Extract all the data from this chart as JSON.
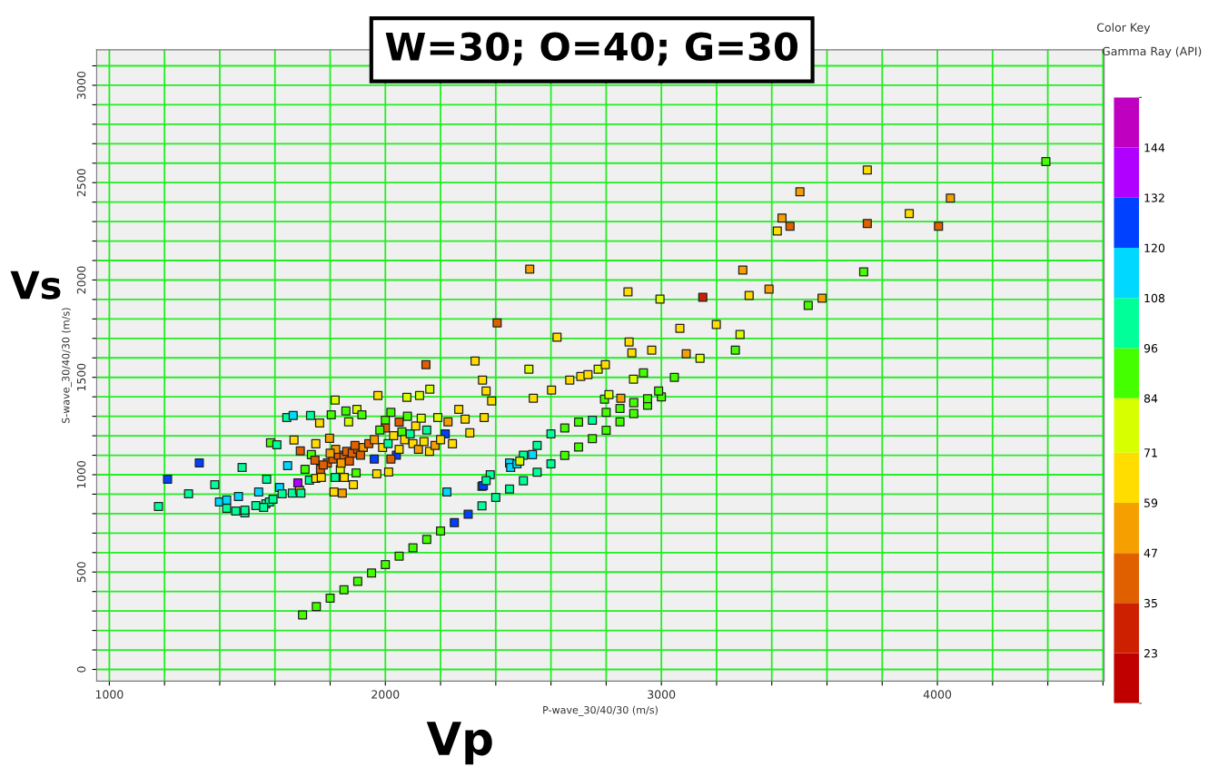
{
  "chart_data": {
    "type": "scatter",
    "title": "W=30; O=40; G=30",
    "xlabel": "P-wave_30/40/30 (m/s)",
    "ylabel": "S-wave_30/40/30 (m/s)",
    "clabel": "Gamma Ray (API)",
    "annotations": [
      "Vs",
      "Vp",
      "Color Key"
    ],
    "xlim": [
      954,
      4604
    ],
    "ylim": [
      -60,
      3182
    ],
    "xticks": [
      1000,
      {
        "value": 1200,
        "label": null
      },
      {
        "value": 1400,
        "label": null
      },
      {
        "value": 1600,
        "label": null
      },
      {
        "value": 1800,
        "label": null
      },
      2000,
      {
        "value": 2200,
        "label": null
      },
      {
        "value": 2400,
        "label": null
      },
      {
        "value": 2600,
        "label": null
      },
      {
        "value": 2800,
        "label": null
      },
      3000,
      {
        "value": 3200,
        "label": null
      },
      {
        "value": 3400,
        "label": null
      },
      {
        "value": 3600,
        "label": null
      },
      {
        "value": 3800,
        "label": null
      },
      4000,
      {
        "value": 4200,
        "label": null
      },
      {
        "value": 4400,
        "label": null
      },
      {
        "value": 4600,
        "label": null
      }
    ],
    "yticks": [
      0,
      {
        "value": 100,
        "label": null
      },
      {
        "value": 200,
        "label": null
      },
      {
        "value": 300,
        "label": null
      },
      {
        "value": 400,
        "label": null
      },
      500,
      {
        "value": 600,
        "label": null
      },
      {
        "value": 700,
        "label": null
      },
      {
        "value": 800,
        "label": null
      },
      {
        "value": 900,
        "label": null
      },
      1000,
      {
        "value": 1100,
        "label": null
      },
      {
        "value": 1200,
        "label": null
      },
      {
        "value": 1300,
        "label": null
      },
      {
        "value": 1400,
        "label": null
      },
      1500,
      {
        "value": 1600,
        "label": null
      },
      {
        "value": 1700,
        "label": null
      },
      {
        "value": 1800,
        "label": null
      },
      {
        "value": 1900,
        "label": null
      },
      2000,
      {
        "value": 2100,
        "label": null
      },
      {
        "value": 2200,
        "label": null
      },
      {
        "value": 2300,
        "label": null
      },
      {
        "value": 2400,
        "label": null
      },
      2500,
      {
        "value": 2600,
        "label": null
      },
      {
        "value": 2700,
        "label": null
      },
      {
        "value": 2800,
        "label": null
      },
      {
        "value": 2900,
        "label": null
      },
      3000,
      {
        "value": 3100,
        "label": null
      }
    ],
    "clim": [
      11,
      156
    ],
    "cticks": [
      23,
      35,
      47,
      59,
      71,
      84,
      96,
      108,
      120,
      132,
      144
    ],
    "grid": true,
    "marker": "square",
    "x": [
      1700,
      1750,
      1800,
      1850,
      1900,
      1950,
      2000,
      2050,
      2100,
      2150,
      2200,
      2250,
      2300,
      2350,
      2400,
      2450,
      2500,
      2550,
      2600,
      2650,
      2700,
      2750,
      2800,
      2850,
      2900,
      2950,
      3000,
      2350,
      2380,
      2450,
      2500,
      2550,
      2600,
      2650,
      2700,
      2750,
      2800,
      2850,
      2900,
      2950,
      2990,
      3746,
      3502,
      4047,
      3437,
      3466,
      3420,
      3746,
      3898,
      4004,
      4393,
      3295,
      3733,
      3150,
      3318,
      3390,
      3582,
      3532,
      2995,
      3067,
      3199,
      3285,
      3268,
      3090,
      3140,
      3047,
      2523,
      2405,
      2879,
      2622,
      2883,
      2893,
      2965,
      2147,
      2325,
      2520,
      2352,
      2365,
      2385,
      2899,
      2935,
      2853,
      2794,
      2810,
      2708,
      2734,
      2771,
      2668,
      2797,
      2602,
      2358,
      2536,
      2223,
      2355,
      2365,
      2454,
      2477,
      2487,
      2533,
      2266,
      2289,
      2306,
      2161,
      2190,
      2227,
      2243,
      2217,
      2124,
      2078,
      1178,
      1211,
      1326,
      1287,
      1382,
      1481,
      1570,
      1399,
      1425,
      1468,
      1491,
      1531,
      1541,
      1567,
      1580,
      1617,
      1626,
      1663,
      1689,
      1694,
      1425,
      1458,
      1491,
      1559,
      1593,
      1683,
      1643,
      1666,
      1729,
      1584,
      1607,
      1669,
      1646,
      1762,
      1692,
      1732,
      1748,
      1709,
      1804,
      1818,
      1867,
      1857,
      1897,
      1915,
      1973,
      1745,
      1765,
      1798,
      1725,
      1748,
      1768,
      1814,
      1844,
      1884,
      1818,
      1837,
      1851,
      1894,
      1969,
      2012,
      1790,
      1810,
      1830,
      1850,
      1860,
      1880,
      1900,
      1920,
      1940,
      1870,
      1820,
      1890,
      1960,
      1910,
      1840,
      1775,
      1800,
      1990,
      2010,
      2030,
      2050,
      2060,
      2000,
      2020,
      2080,
      2100,
      2120,
      2140,
      2160,
      2040,
      2000,
      2070,
      1980,
      2090,
      2110,
      2130,
      2180,
      1960,
      2020,
      2050,
      2150,
      2200
    ],
    "values": [
      280,
      323,
      366,
      409,
      452,
      495,
      538,
      582,
      625,
      668,
      711,
      754,
      797,
      840,
      883,
      926,
      969,
      1013,
      1056,
      1099,
      1142,
      1185,
      1228,
      1271,
      1314,
      1357,
      1400,
      940,
      1000,
      1060,
      1100,
      1150,
      1210,
      1240,
      1270,
      1280,
      1320,
      1340,
      1370,
      1390,
      1430,
      2565,
      2453,
      2421,
      2318,
      2276,
      2252,
      2290,
      2341,
      2276,
      2608,
      2051,
      2042,
      1911,
      1921,
      1953,
      1907,
      1869,
      1902,
      1752,
      1771,
      1720,
      1640,
      1621,
      1598,
      1500,
      2056,
      1780,
      1939,
      1706,
      1682,
      1626,
      1640,
      1565,
      1584,
      1542,
      1486,
      1430,
      1379,
      1491,
      1523,
      1393,
      1388,
      1411,
      1505,
      1514,
      1542,
      1486,
      1565,
      1435,
      1294,
      1393,
      911,
      944,
      970,
      1037,
      1056,
      1070,
      1103,
      1336,
      1285,
      1215,
      1439,
      1294,
      1271,
      1159,
      1210,
      1407,
      1397,
      837,
      977,
      1061,
      902,
      949,
      1037,
      977,
      860,
      870,
      888,
      804,
      841,
      911,
      851,
      860,
      935,
      902,
      906,
      921,
      906,
      827,
      813,
      818,
      832,
      874,
      958,
      1294,
      1304,
      1304,
      1164,
      1154,
      1178,
      1047,
      1266,
      1122,
      1103,
      1159,
      1028,
      1308,
      1383,
      1271,
      1327,
      1336,
      1308,
      1407,
      1075,
      1028,
      1187,
      972,
      981,
      986,
      911,
      906,
      949,
      986,
      1028,
      986,
      1009,
      1005,
      1014,
      1060,
      1080,
      1100,
      1090,
      1120,
      1110,
      1130,
      1140,
      1160,
      1070,
      1130,
      1150,
      1180,
      1100,
      1060,
      1050,
      1110,
      1140,
      1160,
      1200,
      1270,
      1220,
      1280,
      1320,
      1300,
      1160,
      1130,
      1170,
      1120,
      1100,
      1240,
      1180,
      1230,
      1210,
      1250,
      1290,
      1150,
      1080,
      1080,
      1130,
      1230,
      1180
    ],
    "cvalues": [
      90,
      90,
      90,
      90,
      90,
      90,
      90,
      90,
      90,
      90,
      90,
      126,
      126,
      102,
      102,
      102,
      102,
      102,
      102,
      90,
      90,
      90,
      90,
      90,
      90,
      90,
      90,
      114,
      102,
      114,
      102,
      102,
      102,
      90,
      90,
      102,
      90,
      90,
      90,
      90,
      90,
      65,
      53,
      53,
      53,
      41,
      65,
      41,
      65,
      41,
      90,
      53,
      90,
      29,
      65,
      53,
      53,
      90,
      78,
      65,
      65,
      78,
      90,
      53,
      78,
      90,
      53,
      41,
      65,
      65,
      65,
      65,
      65,
      41,
      65,
      78,
      65,
      65,
      65,
      78,
      90,
      53,
      90,
      78,
      65,
      65,
      78,
      65,
      65,
      65,
      65,
      65,
      114,
      126,
      102,
      114,
      114,
      78,
      114,
      65,
      65,
      65,
      78,
      78,
      53,
      65,
      126,
      78,
      78,
      102,
      126,
      126,
      102,
      102,
      102,
      102,
      114,
      114,
      114,
      102,
      102,
      114,
      102,
      102,
      114,
      102,
      102,
      65,
      102,
      102,
      102,
      102,
      102,
      102,
      140,
      102,
      114,
      102,
      90,
      102,
      65,
      114,
      65,
      41,
      90,
      65,
      90,
      90,
      78,
      78,
      90,
      78,
      90,
      65,
      41,
      41,
      53,
      102,
      65,
      65,
      65,
      53,
      65,
      102,
      78,
      65,
      90,
      65,
      65,
      35,
      41,
      41,
      35,
      41,
      35,
      41,
      47,
      41,
      41,
      47,
      41,
      47,
      35,
      47,
      41,
      47,
      59,
      107,
      59,
      35,
      90,
      90,
      84,
      90,
      59,
      47,
      59,
      65,
      125,
      41,
      59,
      90,
      100,
      59,
      75,
      47,
      120,
      35,
      65,
      100,
      59
    ]
  }
}
